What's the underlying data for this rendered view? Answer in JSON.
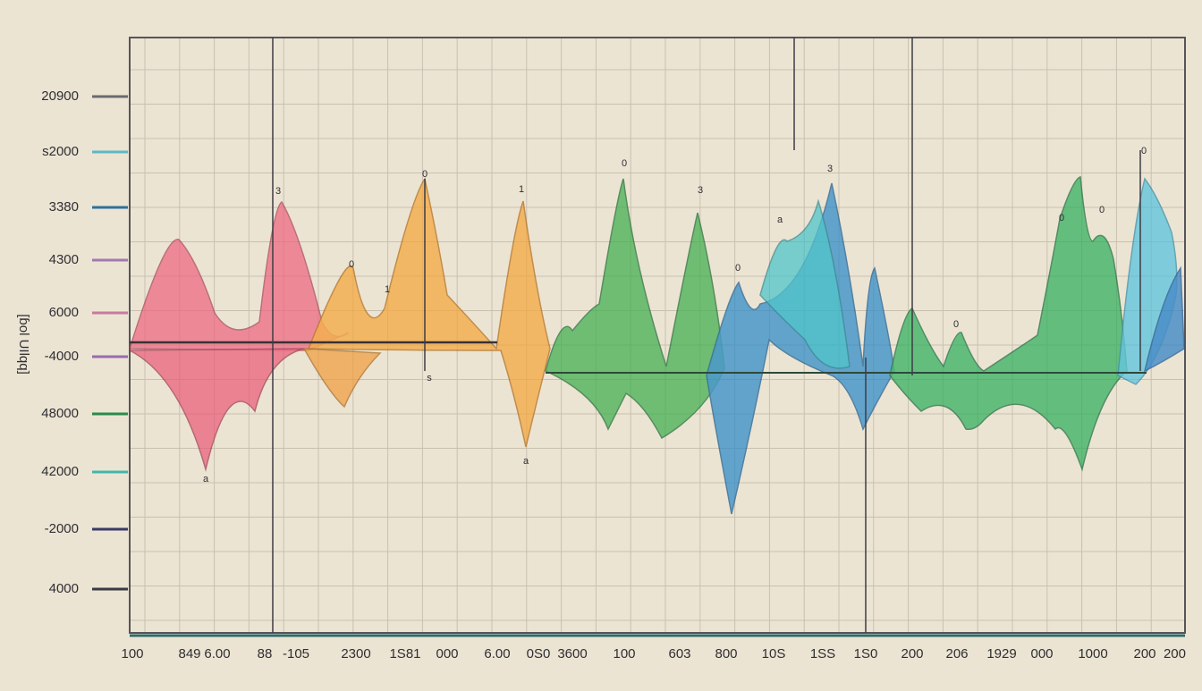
{
  "y_axis": {
    "title": "[ɓol UIlqq]",
    "labels": [
      "20900",
      "s2000",
      "3380",
      "4300",
      "6000",
      "-4000",
      "48000",
      "42000",
      "-2000",
      "4000"
    ]
  },
  "x_axis": {
    "labels": [
      "100",
      "849",
      "6.00",
      "88",
      "-105",
      "2300",
      "1S81",
      "000",
      "6.00",
      "0S0",
      "3600",
      "100",
      "603",
      "800",
      "10S",
      "1SS",
      "1S0",
      "200",
      "206",
      "1929",
      "000",
      "1000",
      "200",
      "200"
    ]
  },
  "annotations": [
    "3",
    "0",
    "1",
    "0",
    "3",
    "3",
    "0",
    "0",
    "1",
    "s",
    "a",
    "a",
    "0",
    "a",
    "0",
    "0",
    "0"
  ]
}
